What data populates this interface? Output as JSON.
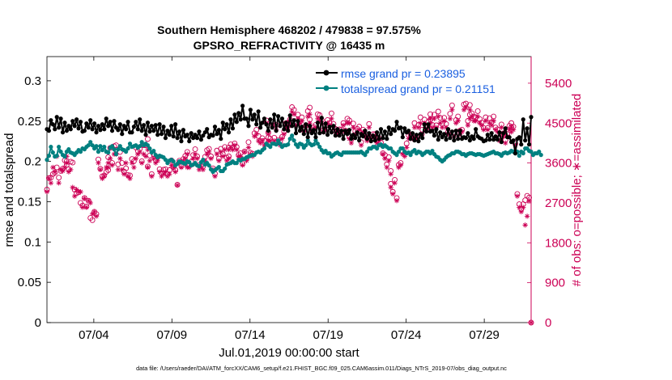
{
  "chart_data": {
    "type": "line",
    "title_line1": "Southern Hemisphere 468202 / 479838 = 97.575%",
    "title_line2": "GPSRO_REFRACTIVITY @ 16435 m",
    "xlabel": "Jul.01,2019 00:00:00 start",
    "ylabel_left": "rmse and totalspread",
    "ylabel_right": "# of obs: o=possible; ∗=assimilated",
    "footer": "data file: /Users/raeder/DAI/ATM_forcXX/CAM6_setup/f.e21.FHIST_BGC.f09_025.CAM6assim.011/Diags_NTrS_2019-07/obs_diag_output.nc",
    "x_ticks": [
      "07/04",
      "07/09",
      "07/14",
      "07/19",
      "07/24",
      "07/29"
    ],
    "x_tick_days": [
      4,
      9,
      14,
      19,
      24,
      29
    ],
    "xlim": [
      1.0,
      32.0
    ],
    "left_axis": {
      "ylim": [
        0,
        0.33
      ],
      "ticks": [
        0,
        0.05,
        0.1,
        0.15,
        0.2,
        0.25,
        0.3
      ],
      "tick_labels": [
        "0",
        "0.05",
        "0.1",
        "0.15",
        "0.2",
        "0.25",
        "0.3"
      ]
    },
    "right_axis": {
      "ylim": [
        0,
        6000
      ],
      "ticks": [
        0,
        900,
        1800,
        2700,
        3600,
        4500,
        5400
      ],
      "tick_labels": [
        "0",
        "900",
        "1800",
        "2700",
        "3600",
        "4500",
        "5400"
      ]
    },
    "legend": {
      "rmse": "rmse grand pr = 0.23895",
      "spread": "totalspread grand pr = 0.21151"
    },
    "colors": {
      "rmse": "#000000",
      "spread": "#008080",
      "obs": "#cc0055",
      "legend_text": "#1a5fe0"
    },
    "rmse": [
      0.24,
      0.238,
      0.251,
      0.246,
      0.24,
      0.255,
      0.242,
      0.253,
      0.236,
      0.248,
      0.238,
      0.244,
      0.24,
      0.25,
      0.244,
      0.252,
      0.241,
      0.249,
      0.237,
      0.238,
      0.247,
      0.242,
      0.251,
      0.24,
      0.247,
      0.236,
      0.244,
      0.239,
      0.246,
      0.24,
      0.253,
      0.244,
      0.249,
      0.238,
      0.25,
      0.242,
      0.239,
      0.246,
      0.234,
      0.244,
      0.24,
      0.249,
      0.236,
      0.236,
      0.243,
      0.249,
      0.24,
      0.252,
      0.238,
      0.245,
      0.233,
      0.248,
      0.237,
      0.244,
      0.238,
      0.245,
      0.233,
      0.246,
      0.234,
      0.243,
      0.229,
      0.238,
      0.233,
      0.244,
      0.231,
      0.246,
      0.229,
      0.237,
      0.225,
      0.239,
      0.231,
      0.233,
      0.225,
      0.235,
      0.229,
      0.233,
      0.229,
      0.237,
      0.227,
      0.232,
      0.236,
      0.24,
      0.23,
      0.233,
      0.232,
      0.243,
      0.234,
      0.239,
      0.228,
      0.248,
      0.24,
      0.246,
      0.236,
      0.252,
      0.241,
      0.258,
      0.249,
      0.26,
      0.252,
      0.269,
      0.253,
      0.253,
      0.244,
      0.264,
      0.252,
      0.258,
      0.246,
      0.262,
      0.242,
      0.248,
      0.253,
      0.246,
      0.238,
      0.252,
      0.242,
      0.258,
      0.238,
      0.256,
      0.244,
      0.253,
      0.24,
      0.248,
      0.238,
      0.257,
      0.244,
      0.251,
      0.235,
      0.25,
      0.238,
      0.243,
      0.234,
      0.246,
      0.23,
      0.244,
      0.235,
      0.239,
      0.23,
      0.248,
      0.235,
      0.254,
      0.236,
      0.247,
      0.233,
      0.243,
      0.236,
      0.244,
      0.232,
      0.24,
      0.232,
      0.238,
      0.228,
      0.238,
      0.234,
      0.239,
      0.228,
      0.233,
      0.229,
      0.236,
      0.226,
      0.234,
      0.231,
      0.238,
      0.228,
      0.235,
      0.225,
      0.232,
      0.226,
      0.236,
      0.228,
      0.24,
      0.229,
      0.237,
      0.228,
      0.242,
      0.234,
      0.24,
      0.238,
      0.249,
      0.241,
      0.242,
      0.23,
      0.241,
      0.236,
      0.238,
      0.228,
      0.235,
      0.226,
      0.233,
      0.225,
      0.234,
      0.229,
      0.246,
      0.237,
      0.246,
      0.237,
      0.238,
      0.232,
      0.24,
      0.227,
      0.236,
      0.23,
      0.234,
      0.227,
      0.24,
      0.229,
      0.237,
      0.226,
      0.238,
      0.228,
      0.238,
      0.228,
      0.23,
      0.229,
      0.235,
      0.226,
      0.231,
      0.228,
      0.24,
      0.231,
      0.229,
      0.228,
      0.225,
      0.226,
      0.233,
      0.227,
      0.235,
      0.227,
      0.231,
      0.227,
      0.236,
      0.224,
      0.235,
      0.241,
      0.23,
      0.23,
      0.224,
      0.226,
      0.21,
      0.228,
      0.23,
      0.221,
      0.252,
      0.226,
      0.241,
      0.221,
      0.255
    ],
    "spread": [
      0.202,
      0.207,
      0.218,
      0.211,
      0.206,
      0.207,
      0.218,
      0.212,
      0.208,
      0.206,
      0.212,
      0.215,
      0.211,
      0.21,
      0.208,
      0.211,
      0.214,
      0.212,
      0.216,
      0.215,
      0.218,
      0.22,
      0.224,
      0.22,
      0.216,
      0.219,
      0.212,
      0.219,
      0.214,
      0.218,
      0.212,
      0.211,
      0.217,
      0.219,
      0.215,
      0.209,
      0.215,
      0.219,
      0.215,
      0.214,
      0.212,
      0.216,
      0.222,
      0.218,
      0.219,
      0.22,
      0.217,
      0.219,
      0.224,
      0.22,
      0.222,
      0.22,
      0.216,
      0.211,
      0.213,
      0.208,
      0.205,
      0.207,
      0.206,
      0.205,
      0.202,
      0.198,
      0.201,
      0.202,
      0.2,
      0.195,
      0.197,
      0.2,
      0.199,
      0.198,
      0.197,
      0.2,
      0.199,
      0.195,
      0.196,
      0.198,
      0.195,
      0.194,
      0.199,
      0.202,
      0.196,
      0.198,
      0.195,
      0.19,
      0.187,
      0.189,
      0.191,
      0.193,
      0.188,
      0.188,
      0.191,
      0.196,
      0.197,
      0.198,
      0.2,
      0.198,
      0.198,
      0.202,
      0.201,
      0.203,
      0.203,
      0.205,
      0.206,
      0.207,
      0.208,
      0.208,
      0.211,
      0.212,
      0.211,
      0.214,
      0.216,
      0.222,
      0.22,
      0.218,
      0.222,
      0.222,
      0.221,
      0.226,
      0.222,
      0.218,
      0.22,
      0.22,
      0.221,
      0.228,
      0.232,
      0.226,
      0.221,
      0.218,
      0.222,
      0.221,
      0.217,
      0.22,
      0.226,
      0.222,
      0.22,
      0.221,
      0.226,
      0.222,
      0.218,
      0.214,
      0.211,
      0.213,
      0.21,
      0.21,
      0.206,
      0.208,
      0.21,
      0.211,
      0.209,
      0.208,
      0.211,
      0.211,
      0.211,
      0.211,
      0.211,
      0.211,
      0.211,
      0.211,
      0.211,
      0.212,
      0.21,
      0.208,
      0.212,
      0.216,
      0.216,
      0.218,
      0.218,
      0.216,
      0.22,
      0.221,
      0.218,
      0.22,
      0.218,
      0.216,
      0.216,
      0.212,
      0.21,
      0.208,
      0.212,
      0.216,
      0.216,
      0.212,
      0.21,
      0.211,
      0.208,
      0.212,
      0.214,
      0.21,
      0.212,
      0.211,
      0.208,
      0.21,
      0.212,
      0.212,
      0.21,
      0.213,
      0.209,
      0.206,
      0.205,
      0.202,
      0.2,
      0.202,
      0.205,
      0.207,
      0.208,
      0.21,
      0.21,
      0.212,
      0.212,
      0.211,
      0.209,
      0.209,
      0.207,
      0.209,
      0.21,
      0.21,
      0.209,
      0.208,
      0.209,
      0.209,
      0.208,
      0.207,
      0.208,
      0.209,
      0.21,
      0.211,
      0.212,
      0.21,
      0.21,
      0.209,
      0.207,
      0.21,
      0.211,
      0.21,
      0.211,
      0.213,
      0.212,
      0.21,
      0.212,
      0.207,
      0.212,
      0.21,
      0.216,
      0.216,
      0.213,
      0.212,
      0.208,
      0.21,
      0.21,
      0.212,
      0.208
    ],
    "obs_possible": [
      3000,
      3260,
      3270,
      3350,
      3380,
      3500,
      3270,
      3420,
      3470,
      3660,
      3640,
      3560,
      3460,
      3630,
      3610,
      3000,
      2920,
      2940,
      2700,
      2640,
      2810,
      2620,
      2750,
      2360,
      2310,
      2500,
      2450,
      3680,
      3470,
      3300,
      3320,
      3400,
      3440,
      3730,
      3940,
      3600,
      3980,
      4000,
      3570,
      3850,
      3600,
      3410,
      3480,
      3330,
      3320,
      3690,
      3640,
      3950,
      3870,
      3920,
      3640,
      4000,
      4000,
      3520,
      4140,
      3770,
      3350,
      3800,
      3670,
      3730,
      3460,
      3370,
      3450,
      3460,
      3350,
      3440,
      3660,
      3510,
      3440,
      3110,
      3650,
      3530,
      3690,
      3760,
      3550,
      3850,
      3540,
      3630,
      3780,
      3910,
      3750,
      3550,
      3540,
      3520,
      3740,
      3890,
      3920,
      3750,
      3480,
      3360,
      3880,
      3700,
      3920,
      3800,
      3960,
      3720,
      3750,
      3950,
      4020,
      3950,
      4040,
      3960,
      3780,
      3820,
      3580,
      3860,
      3700,
      4070,
      3830,
      3810,
      4270,
      4350,
      4210,
      4100,
      4160,
      4100,
      4560,
      4290,
      4180,
      4150,
      4530,
      4170,
      4460,
      4120,
      4070,
      4190,
      4310,
      4500,
      4510,
      4580,
      4860,
      4800,
      4510,
      4690,
      4530,
      4630,
      4350,
      4450,
      4770,
      4580,
      4850,
      4360,
      4410,
      4460,
      4700,
      4680,
      4570,
      4350,
      4440,
      4570,
      4500,
      4720,
      4480,
      4370,
      4330,
      4360,
      4350,
      4500,
      4330,
      4600,
      4560,
      4200,
      4130,
      4490,
      4320,
      4370,
      4420,
      4070,
      4350,
      4260,
      4160,
      4480,
      4190,
      4250,
      4250,
      4100,
      4160,
      4060,
      3820,
      3780,
      3570,
      3730,
      3420,
      3130,
      2950,
      3220,
      2810,
      3560,
      3600,
      3860,
      3820,
      4040,
      4230,
      4240,
      4220,
      4500,
      4190,
      4460,
      4630,
      4350,
      4580,
      4400,
      4530,
      4700,
      4580,
      4460,
      4690,
      4450,
      4760,
      4620,
      4480,
      4620,
      4480,
      4300,
      4710,
      4900,
      4280,
      4570,
      4650,
      4330,
      4350,
      4920,
      4940,
      4550,
      4690,
      4910,
      4720,
      4650,
      4630,
      4770,
      4590,
      4510,
      4390,
      4630,
      4390,
      4610,
      4520,
      4650,
      4400,
      4360,
      4180,
      4470,
      4270,
      4120,
      4250,
      4440,
      4410,
      4500,
      4420,
      4040,
      2900,
      2670,
      2560,
      2670,
      2760,
      2860,
      2820,
      0
    ],
    "obs_assimilated": [
      2950,
      3250,
      3150,
      3500,
      3400,
      3750,
      3150,
      3450,
      3420,
      3500,
      3600,
      3750,
      3400,
      3450,
      3050,
      2850,
      3000,
      2950,
      2950,
      2600,
      2800,
      2600,
      2750,
      2700,
      2450,
      2500,
      2400,
      3600,
      3450,
      3250,
      3300,
      3500,
      3500,
      3600,
      3700,
      3550,
      3800,
      3800,
      3450,
      3700,
      3450,
      3350,
      3600,
      3300,
      3250,
      3600,
      3500,
      3700,
      3800,
      3850,
      3600,
      3800,
      3750,
      3500,
      3900,
      3650,
      3300,
      3700,
      3600,
      3650,
      3400,
      3300,
      3350,
      3400,
      3300,
      3350,
      3550,
      3500,
      3400,
      3100,
      3600,
      3500,
      3650,
      3700,
      3500,
      3800,
      3500,
      3550,
      3700,
      3800,
      3700,
      3450,
      3500,
      3450,
      3650,
      3800,
      3850,
      3700,
      3450,
      3300,
      3800,
      3650,
      3850,
      3750,
      3900,
      3650,
      3700,
      3900,
      3950,
      3900,
      4000,
      3900,
      3750,
      3750,
      3550,
      3850,
      3650,
      3950,
      3800,
      3750,
      4200,
      4250,
      4100,
      4050,
      4100,
      4000,
      4500,
      4250,
      4100,
      4100,
      4450,
      4100,
      4350,
      4050,
      4000,
      4150,
      4250,
      4400,
      4400,
      4450,
      4750,
      4700,
      4450,
      4600,
      4500,
      4550,
      4300,
      4400,
      4650,
      4500,
      4700,
      4300,
      4350,
      4400,
      4600,
      4550,
      4500,
      4300,
      4350,
      4500,
      4450,
      4600,
      4400,
      4300,
      4250,
      4300,
      4300,
      4450,
      4300,
      4500,
      4500,
      4150,
      4050,
      4400,
      4250,
      4300,
      4350,
      4000,
      4300,
      4200,
      4100,
      4400,
      4150,
      4200,
      4200,
      4050,
      4100,
      4000,
      3800,
      3700,
      3500,
      3650,
      3350,
      3050,
      2900,
      3150,
      2750,
      3500,
      3550,
      3800,
      3750,
      3950,
      4150,
      4150,
      4150,
      4400,
      4150,
      4400,
      4500,
      4250,
      4500,
      4350,
      4450,
      4600,
      4500,
      4400,
      4600,
      4400,
      4650,
      4500,
      4400,
      4550,
      4400,
      4250,
      4600,
      4800,
      4200,
      4500,
      4550,
      4250,
      4300,
      4800,
      4850,
      4450,
      4600,
      4800,
      4650,
      4550,
      4550,
      4650,
      4500,
      4450,
      4350,
      4550,
      4350,
      4500,
      4450,
      4550,
      4350,
      4300,
      4100,
      4400,
      4200,
      4050,
      4200,
      4350,
      4300,
      4400,
      4350,
      4000,
      2850,
      2600,
      2500,
      2600,
      2200,
      2400,
      2750,
      0
    ]
  }
}
